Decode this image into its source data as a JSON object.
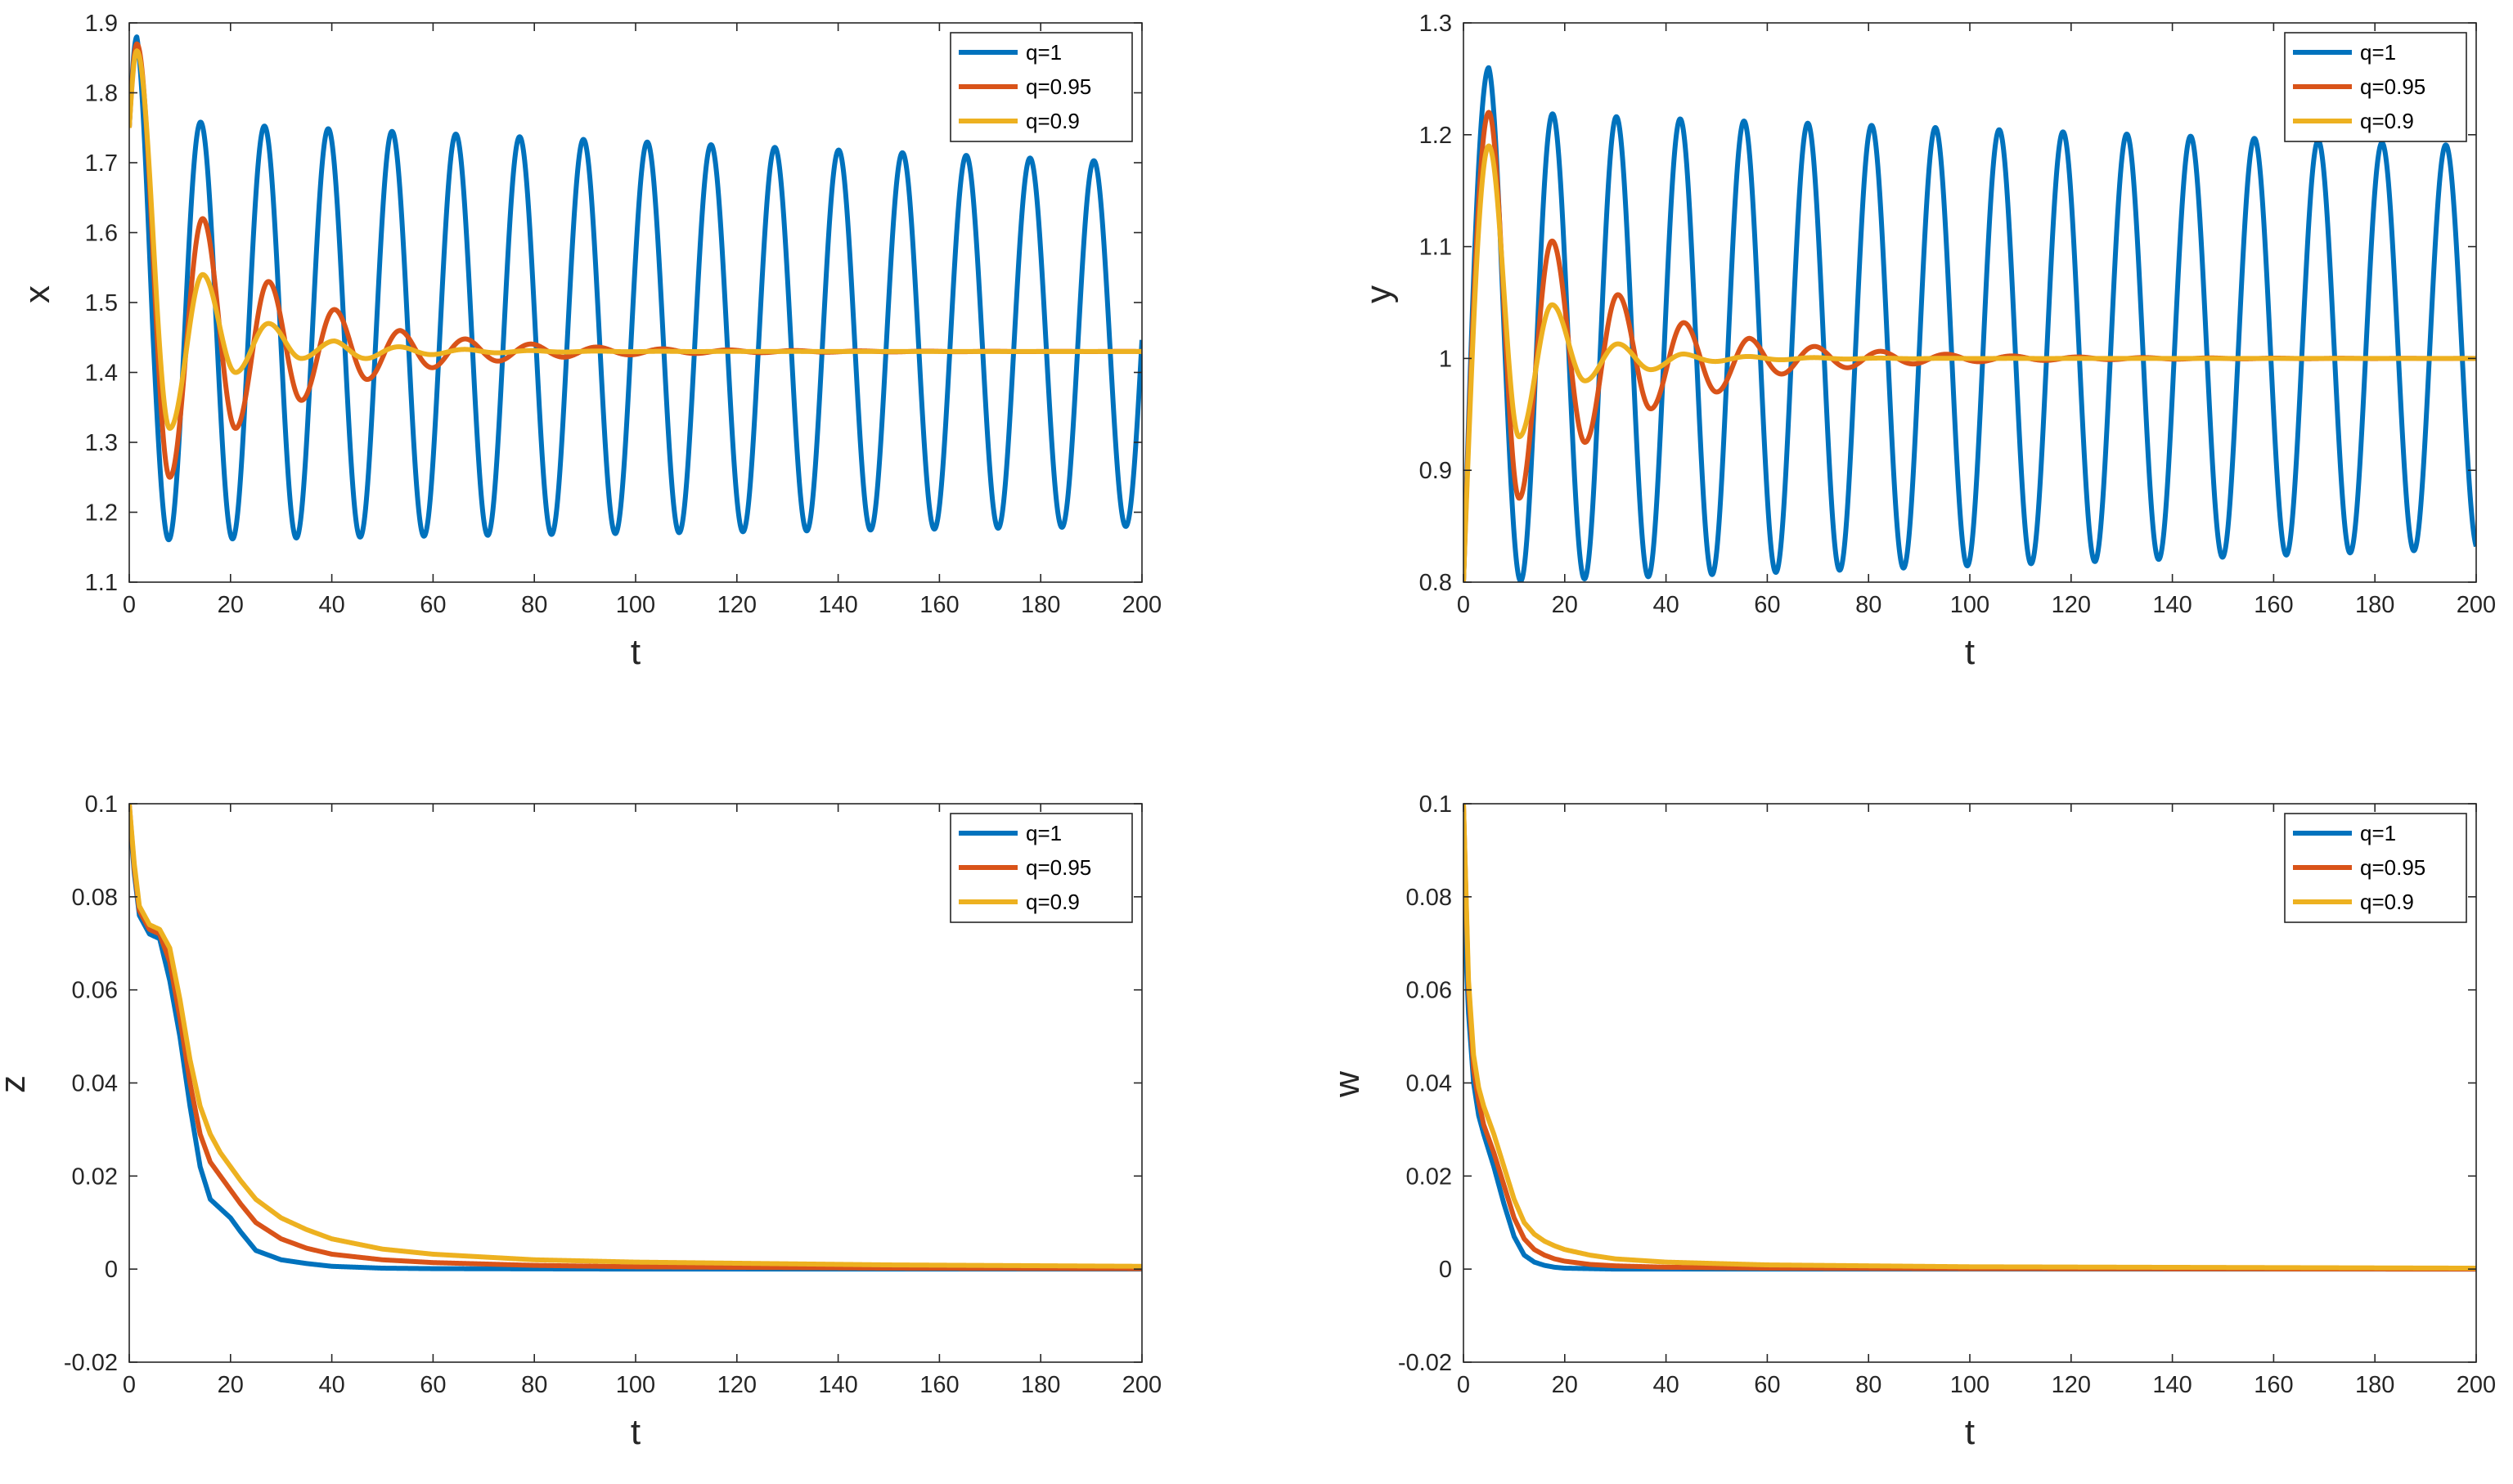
{
  "chart_data": [
    {
      "type": "line",
      "xlabel": "t",
      "ylabel": "x",
      "xlim": [
        0,
        200
      ],
      "ylim": [
        1.1,
        1.9
      ],
      "xticks": [
        "0",
        "20",
        "40",
        "60",
        "80",
        "100",
        "120",
        "140",
        "160",
        "180",
        "200"
      ],
      "yticks": [
        "1.1",
        "1.2",
        "1.3",
        "1.4",
        "1.5",
        "1.6",
        "1.7",
        "1.8",
        "1.9"
      ],
      "legend_position": "top-right",
      "series": [
        {
          "name": "q=1",
          "model": "oscillating",
          "start": 1.75,
          "equilibrium": 1.43,
          "first_peak": 1.88,
          "peak_time": 1.5,
          "peak_values": [
            1.76,
            1.7
          ],
          "trough_values": [
            1.16,
            1.18
          ],
          "period": 12.6
        },
        {
          "name": "q=0.95",
          "model": "damped",
          "start": 1.75,
          "equilibrium": 1.43,
          "first_peak": 1.87,
          "peak_time": 1.5,
          "extrema": [
            1.25,
            1.62,
            1.32,
            1.53,
            1.36,
            1.49,
            1.39,
            1.46
          ],
          "extrema_times": [
            8.0,
            14.5,
            21.0,
            27.5,
            34.0,
            40.5,
            47.0,
            53.5
          ],
          "decay": 25
        },
        {
          "name": "q=0.9",
          "model": "damped",
          "start": 1.75,
          "equilibrium": 1.43,
          "first_peak": 1.86,
          "peak_time": 1.5,
          "extrema": [
            1.32,
            1.54,
            1.4,
            1.47,
            1.42,
            1.445
          ],
          "extrema_times": [
            8.0,
            14.5,
            21.0,
            27.5,
            34.0,
            40.5
          ],
          "decay": 16
        }
      ]
    },
    {
      "type": "line",
      "xlabel": "t",
      "ylabel": "y",
      "xlim": [
        0,
        200
      ],
      "ylim": [
        0.8,
        1.3
      ],
      "xticks": [
        "0",
        "20",
        "40",
        "60",
        "80",
        "100",
        "120",
        "140",
        "160",
        "180",
        "200"
      ],
      "yticks": [
        "0.8",
        "0.9",
        "1",
        "1.1",
        "1.2",
        "1.3"
      ],
      "legend_position": "top-right",
      "series": [
        {
          "name": "q=1",
          "model": "oscillating",
          "start": 0.8,
          "equilibrium": 1.0,
          "first_peak": 1.26,
          "peak_time": 5.0,
          "peak_values": [
            1.22,
            1.19
          ],
          "trough_values": [
            0.8,
            0.83
          ],
          "period": 12.6
        },
        {
          "name": "q=0.95",
          "model": "damped",
          "start": 0.8,
          "equilibrium": 1.0,
          "first_peak": 1.22,
          "peak_time": 5.0,
          "extrema": [
            0.875,
            1.105,
            0.925,
            1.057,
            0.955,
            1.032,
            0.97,
            1.018
          ],
          "extrema_times": [
            11.0,
            17.5,
            24.0,
            30.5,
            37.0,
            43.5,
            50.0,
            56.5
          ],
          "decay": 25
        },
        {
          "name": "q=0.9",
          "model": "damped",
          "start": 0.8,
          "equilibrium": 1.0,
          "first_peak": 1.19,
          "peak_time": 5.0,
          "extrema": [
            0.93,
            1.048,
            0.98,
            1.013,
            0.99,
            1.004
          ],
          "extrema_times": [
            11.0,
            17.5,
            24.0,
            30.5,
            37.0,
            43.5
          ],
          "decay": 16
        }
      ]
    },
    {
      "type": "line",
      "xlabel": "t",
      "ylabel": "z",
      "xlim": [
        0,
        200
      ],
      "ylim": [
        -0.02,
        0.1
      ],
      "xticks": [
        "0",
        "20",
        "40",
        "60",
        "80",
        "100",
        "120",
        "140",
        "160",
        "180",
        "200"
      ],
      "yticks": [
        "-0.02",
        "0",
        "0.02",
        "0.04",
        "0.06",
        "0.08",
        "0.1"
      ],
      "legend_position": "top-right",
      "series": [
        {
          "name": "q=1",
          "model": "points",
          "x": [
            0,
            1,
            2,
            4,
            6,
            8,
            10,
            12,
            14,
            16,
            18,
            20,
            22,
            25,
            30,
            35,
            40,
            50,
            60,
            80,
            100,
            150,
            200
          ],
          "y": [
            0.098,
            0.085,
            0.076,
            0.072,
            0.071,
            0.062,
            0.05,
            0.035,
            0.022,
            0.015,
            0.013,
            0.011,
            0.008,
            0.004,
            0.002,
            0.0012,
            0.0006,
            0.0002,
            0.0001,
            5e-05,
            0.0,
            0.0,
            0.0
          ]
        },
        {
          "name": "q=0.95",
          "model": "points",
          "x": [
            0,
            1,
            2,
            4,
            6,
            8,
            10,
            12,
            14,
            16,
            18,
            20,
            22,
            25,
            30,
            35,
            40,
            50,
            60,
            80,
            100,
            150,
            200
          ],
          "y": [
            0.1,
            0.086,
            0.077,
            0.073,
            0.072,
            0.066,
            0.054,
            0.04,
            0.029,
            0.023,
            0.02,
            0.017,
            0.014,
            0.01,
            0.0065,
            0.0045,
            0.0032,
            0.002,
            0.0014,
            0.0008,
            0.0005,
            0.0002,
            0.0001
          ]
        },
        {
          "name": "q=0.9",
          "model": "points",
          "x": [
            0,
            1,
            2,
            4,
            6,
            8,
            10,
            12,
            14,
            16,
            18,
            20,
            22,
            25,
            30,
            35,
            40,
            50,
            60,
            80,
            100,
            150,
            200
          ],
          "y": [
            0.1,
            0.087,
            0.078,
            0.074,
            0.073,
            0.069,
            0.058,
            0.045,
            0.035,
            0.029,
            0.025,
            0.022,
            0.019,
            0.015,
            0.011,
            0.0085,
            0.0065,
            0.0043,
            0.0032,
            0.002,
            0.0015,
            0.0009,
            0.0006
          ]
        }
      ]
    },
    {
      "type": "line",
      "xlabel": "t",
      "ylabel": "w",
      "xlim": [
        0,
        200
      ],
      "ylim": [
        -0.02,
        0.1
      ],
      "xticks": [
        "0",
        "20",
        "40",
        "60",
        "80",
        "100",
        "120",
        "140",
        "160",
        "180",
        "200"
      ],
      "yticks": [
        "-0.02",
        "0",
        "0.02",
        "0.04",
        "0.06",
        "0.08",
        "0.1"
      ],
      "legend_position": "top-right",
      "series": [
        {
          "name": "q=1",
          "model": "points",
          "x": [
            0,
            1,
            2,
            3,
            4,
            6,
            8,
            10,
            12,
            14,
            16,
            18,
            20,
            25,
            30,
            40,
            60,
            100,
            200
          ],
          "y": [
            0.08,
            0.055,
            0.04,
            0.033,
            0.029,
            0.022,
            0.014,
            0.007,
            0.003,
            0.0015,
            0.0008,
            0.0004,
            0.0002,
            0.0001,
            0.0,
            0.0,
            0.0,
            0.0,
            0.0
          ]
        },
        {
          "name": "q=0.95",
          "model": "points",
          "x": [
            0,
            1,
            2,
            3,
            4,
            6,
            8,
            10,
            12,
            14,
            16,
            18,
            20,
            25,
            30,
            40,
            60,
            100,
            200
          ],
          "y": [
            0.1,
            0.06,
            0.043,
            0.036,
            0.031,
            0.025,
            0.018,
            0.011,
            0.0065,
            0.0042,
            0.003,
            0.0022,
            0.0017,
            0.001,
            0.0007,
            0.0004,
            0.0002,
            0.0001,
            0.0
          ]
        },
        {
          "name": "q=0.9",
          "model": "points",
          "x": [
            0,
            1,
            2,
            3,
            4,
            6,
            8,
            10,
            12,
            14,
            16,
            18,
            20,
            25,
            30,
            40,
            60,
            100,
            200
          ],
          "y": [
            0.1,
            0.062,
            0.046,
            0.039,
            0.035,
            0.029,
            0.022,
            0.015,
            0.01,
            0.0075,
            0.006,
            0.005,
            0.0042,
            0.003,
            0.0022,
            0.0015,
            0.0009,
            0.0005,
            0.0002
          ]
        }
      ]
    }
  ],
  "colors": {
    "q=1": "#0072BD",
    "q=0.95": "#D95319",
    "q=0.9": "#EDB120",
    "axis": "#262626",
    "background": "#ffffff"
  }
}
